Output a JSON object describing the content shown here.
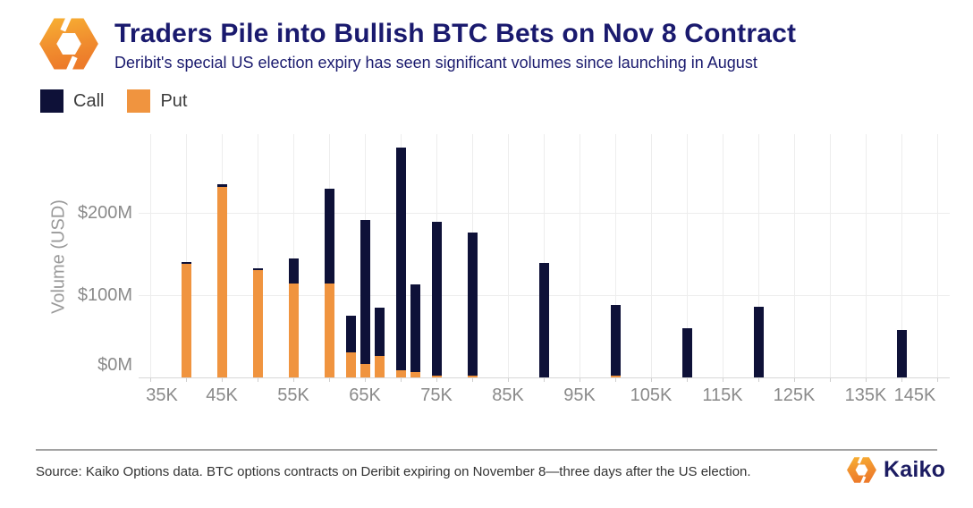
{
  "header": {
    "title": "Traders Pile into Bullish BTC Bets on Nov 8 Contract",
    "subtitle": "Deribit's special US election expiry has seen significant volumes since launching in August"
  },
  "legend": {
    "items": [
      {
        "label": "Call",
        "color": "#0e1138"
      },
      {
        "label": "Put",
        "color": "#f0943f"
      }
    ]
  },
  "chart_data": {
    "type": "bar",
    "stacked": true,
    "title": "Traders Pile into Bullish BTC Bets on Nov 8 Contract",
    "subtitle": "Deribit's special US election expiry has seen significant volumes since launching in August",
    "xlabel": "",
    "ylabel": "Volume (USD)",
    "values_unit": "USD millions",
    "categories": [
      40,
      45,
      50,
      55,
      60,
      63,
      65,
      67,
      70,
      72,
      75,
      80,
      90,
      100,
      110,
      120,
      140
    ],
    "series": [
      {
        "name": "Put",
        "color": "#f0943f",
        "values": [
          138,
          232,
          131,
          114,
          114,
          30,
          16,
          26,
          9,
          6,
          2,
          2,
          0,
          2,
          0,
          0,
          0
        ]
      },
      {
        "name": "Call",
        "color": "#0e1138",
        "values": [
          3,
          3,
          2,
          31,
          116,
          45,
          176,
          59,
          271,
          107,
          187,
          174,
          139,
          86,
          60,
          86,
          58
        ]
      }
    ],
    "x_ticks": [
      {
        "value": 35,
        "label": "35K"
      },
      {
        "value": 45,
        "label": "45K"
      },
      {
        "value": 55,
        "label": "55K"
      },
      {
        "value": 65,
        "label": "65K"
      },
      {
        "value": 75,
        "label": "75K"
      },
      {
        "value": 85,
        "label": "85K"
      },
      {
        "value": 95,
        "label": "95K"
      },
      {
        "value": 105,
        "label": "105K"
      },
      {
        "value": 115,
        "label": "115K"
      },
      {
        "value": 125,
        "label": "125K"
      },
      {
        "value": 135,
        "label": "135K"
      },
      {
        "value": 145,
        "label": "145K"
      }
    ],
    "y_ticks": [
      {
        "value": 0,
        "label": "$0M"
      },
      {
        "value": 100,
        "label": "$100M"
      },
      {
        "value": 200,
        "label": "$200M"
      }
    ],
    "xlim": [
      33,
      147
    ],
    "ylim": [
      0,
      300
    ],
    "grid": true,
    "legend_position": "top-left"
  },
  "footer": {
    "source": "Source: Kaiko Options data. BTC options contracts on Deribit expiring on November 8—three days after the US election.",
    "brand": "Kaiko"
  },
  "icons": {
    "header_logo": "kaiko-hexagon-icon",
    "footer_logo": "kaiko-hexagon-icon"
  }
}
